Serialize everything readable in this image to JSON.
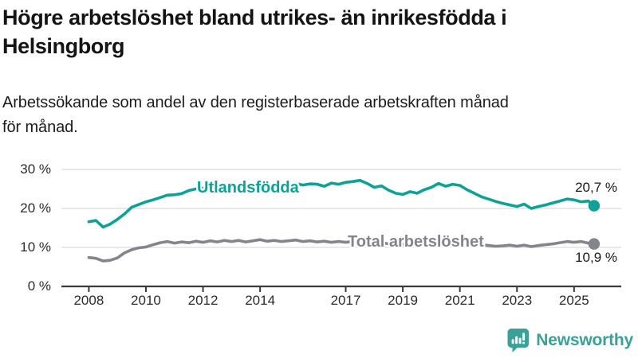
{
  "header": {
    "title": "Högre arbetslöshet bland utrikes- än inrikesfödda i Helsingborg",
    "title_lines": [
      "Högre arbetslöshet bland utrikes- än inrikesfödda i",
      "Helsingborg"
    ],
    "subtitle": "Arbetssökande som andel av den registerbaserade arbetskraften månad för månad.",
    "subtitle_lines": [
      "Arbetssökande som andel av den registerbaserade arbetskraften månad",
      "för månad."
    ]
  },
  "chart_data": {
    "type": "line",
    "title": "Högre arbetslöshet bland utrikes- än inrikesfödda i Helsingborg",
    "subtitle": "Arbetssökande som andel av den registerbaserade arbetskraften månad för månad.",
    "xlabel": "",
    "ylabel": "",
    "unit": "%",
    "ylim": [
      0,
      30
    ],
    "xlim": [
      2007.9,
      2025.8
    ],
    "grid": "horizontal",
    "legend": "inline-labels",
    "y_ticks": [
      {
        "value": 0,
        "label": "0 %"
      },
      {
        "value": 10,
        "label": "10 %"
      },
      {
        "value": 20,
        "label": "20 %"
      },
      {
        "value": 30,
        "label": "30 %"
      }
    ],
    "x_ticks": [
      {
        "value": 2008,
        "label": "2008"
      },
      {
        "value": 2010,
        "label": "2010"
      },
      {
        "value": 2012,
        "label": "2012"
      },
      {
        "value": 2014,
        "label": "2014"
      },
      {
        "value": 2017,
        "label": "2017"
      },
      {
        "value": 2019,
        "label": "2019"
      },
      {
        "value": 2021,
        "label": "2021"
      },
      {
        "value": 2023,
        "label": "2023"
      },
      {
        "value": 2025,
        "label": "2025"
      }
    ],
    "series": [
      {
        "name": "Utlandsfödda",
        "color": "#0ea296",
        "end_label": "20,7 %",
        "end_value": 20.7,
        "points": [
          [
            2008.0,
            16.6
          ],
          [
            2008.25,
            16.9
          ],
          [
            2008.5,
            15.2
          ],
          [
            2008.75,
            16.0
          ],
          [
            2009.0,
            17.2
          ],
          [
            2009.25,
            18.6
          ],
          [
            2009.5,
            20.3
          ],
          [
            2009.75,
            21.0
          ],
          [
            2010.0,
            21.7
          ],
          [
            2010.25,
            22.2
          ],
          [
            2010.5,
            22.8
          ],
          [
            2010.75,
            23.4
          ],
          [
            2011.0,
            23.5
          ],
          [
            2011.25,
            23.8
          ],
          [
            2011.5,
            24.6
          ],
          [
            2011.75,
            25.0
          ],
          [
            2012.0,
            25.2
          ],
          [
            2012.25,
            25.0
          ],
          [
            2012.5,
            25.4
          ],
          [
            2012.75,
            25.6
          ],
          [
            2013.0,
            25.4
          ],
          [
            2013.25,
            25.7
          ],
          [
            2013.5,
            25.5
          ],
          [
            2013.75,
            25.8
          ],
          [
            2014.0,
            25.6
          ],
          [
            2014.25,
            25.9
          ],
          [
            2014.5,
            26.1
          ],
          [
            2014.75,
            25.8
          ],
          [
            2015.0,
            26.1
          ],
          [
            2015.25,
            26.4
          ],
          [
            2015.5,
            26.0
          ],
          [
            2015.75,
            26.3
          ],
          [
            2016.0,
            26.2
          ],
          [
            2016.25,
            25.7
          ],
          [
            2016.5,
            26.5
          ],
          [
            2016.75,
            26.2
          ],
          [
            2017.0,
            26.7
          ],
          [
            2017.25,
            26.9
          ],
          [
            2017.5,
            27.2
          ],
          [
            2017.75,
            26.4
          ],
          [
            2018.0,
            25.4
          ],
          [
            2018.25,
            25.8
          ],
          [
            2018.5,
            24.7
          ],
          [
            2018.75,
            23.9
          ],
          [
            2019.0,
            23.6
          ],
          [
            2019.25,
            24.3
          ],
          [
            2019.5,
            23.9
          ],
          [
            2019.75,
            24.8
          ],
          [
            2020.0,
            25.4
          ],
          [
            2020.25,
            26.4
          ],
          [
            2020.5,
            25.7
          ],
          [
            2020.75,
            26.2
          ],
          [
            2021.0,
            25.9
          ],
          [
            2021.25,
            24.8
          ],
          [
            2021.5,
            23.9
          ],
          [
            2021.75,
            23.0
          ],
          [
            2022.0,
            22.4
          ],
          [
            2022.25,
            21.8
          ],
          [
            2022.5,
            21.3
          ],
          [
            2022.75,
            20.9
          ],
          [
            2023.0,
            20.5
          ],
          [
            2023.25,
            21.1
          ],
          [
            2023.5,
            20.0
          ],
          [
            2023.75,
            20.5
          ],
          [
            2024.0,
            20.9
          ],
          [
            2024.25,
            21.4
          ],
          [
            2024.5,
            21.9
          ],
          [
            2024.75,
            22.4
          ],
          [
            2025.0,
            22.2
          ],
          [
            2025.25,
            21.7
          ],
          [
            2025.5,
            21.9
          ],
          [
            2025.7,
            20.7
          ]
        ]
      },
      {
        "name": "Total arbetslöshet",
        "color": "#84848c",
        "end_label": "10,9 %",
        "end_value": 10.9,
        "points": [
          [
            2008.0,
            7.4
          ],
          [
            2008.25,
            7.2
          ],
          [
            2008.5,
            6.5
          ],
          [
            2008.75,
            6.7
          ],
          [
            2009.0,
            7.3
          ],
          [
            2009.25,
            8.6
          ],
          [
            2009.5,
            9.4
          ],
          [
            2009.75,
            9.9
          ],
          [
            2010.0,
            10.1
          ],
          [
            2010.25,
            10.7
          ],
          [
            2010.5,
            11.2
          ],
          [
            2010.75,
            11.5
          ],
          [
            2011.0,
            11.1
          ],
          [
            2011.25,
            11.4
          ],
          [
            2011.5,
            11.2
          ],
          [
            2011.75,
            11.6
          ],
          [
            2012.0,
            11.3
          ],
          [
            2012.25,
            11.7
          ],
          [
            2012.5,
            11.4
          ],
          [
            2012.75,
            11.8
          ],
          [
            2013.0,
            11.5
          ],
          [
            2013.25,
            11.8
          ],
          [
            2013.5,
            11.4
          ],
          [
            2013.75,
            11.7
          ],
          [
            2014.0,
            12.0
          ],
          [
            2014.25,
            11.6
          ],
          [
            2014.5,
            11.8
          ],
          [
            2014.75,
            11.5
          ],
          [
            2015.0,
            11.7
          ],
          [
            2015.25,
            11.9
          ],
          [
            2015.5,
            11.5
          ],
          [
            2015.75,
            11.7
          ],
          [
            2016.0,
            11.4
          ],
          [
            2016.25,
            11.6
          ],
          [
            2016.5,
            11.3
          ],
          [
            2016.75,
            11.5
          ],
          [
            2017.0,
            11.3
          ],
          [
            2017.25,
            11.5
          ],
          [
            2017.5,
            11.2
          ],
          [
            2017.75,
            11.4
          ],
          [
            2018.0,
            11.1
          ],
          [
            2018.25,
            11.3
          ],
          [
            2018.5,
            10.9
          ],
          [
            2018.75,
            11.1
          ],
          [
            2019.0,
            10.8
          ],
          [
            2019.25,
            11.0
          ],
          [
            2019.5,
            10.7
          ],
          [
            2019.75,
            11.0
          ],
          [
            2020.0,
            11.2
          ],
          [
            2020.25,
            11.6
          ],
          [
            2020.5,
            11.4
          ],
          [
            2020.75,
            11.5
          ],
          [
            2021.0,
            11.3
          ],
          [
            2021.25,
            11.0
          ],
          [
            2021.5,
            10.8
          ],
          [
            2021.75,
            10.7
          ],
          [
            2022.0,
            10.5
          ],
          [
            2022.25,
            10.3
          ],
          [
            2022.5,
            10.4
          ],
          [
            2022.75,
            10.6
          ],
          [
            2023.0,
            10.3
          ],
          [
            2023.25,
            10.6
          ],
          [
            2023.5,
            10.2
          ],
          [
            2023.75,
            10.5
          ],
          [
            2024.0,
            10.7
          ],
          [
            2024.25,
            10.9
          ],
          [
            2024.5,
            11.2
          ],
          [
            2024.75,
            11.5
          ],
          [
            2025.0,
            11.3
          ],
          [
            2025.25,
            11.5
          ],
          [
            2025.5,
            11.1
          ],
          [
            2025.7,
            10.9
          ]
        ]
      }
    ]
  },
  "logo": {
    "text": "Newsworthy",
    "icon": "bar-chart-speech-bubble-icon",
    "color": "#38a198"
  }
}
